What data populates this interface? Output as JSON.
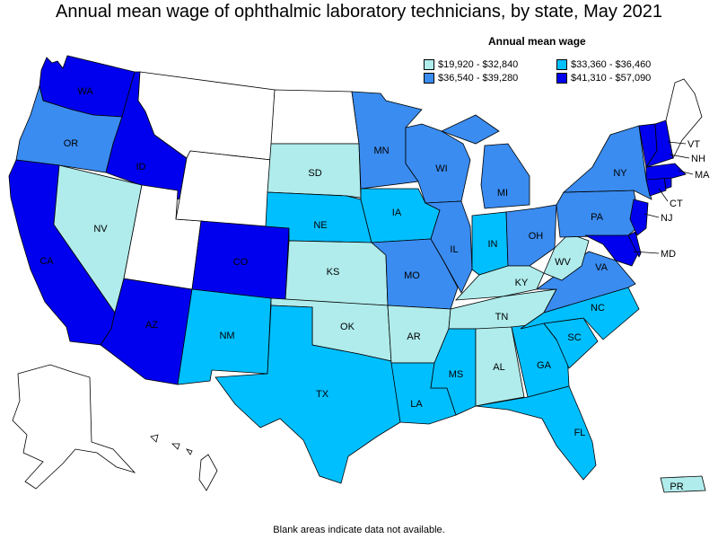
{
  "title": "Annual mean wage of ophthalmic laboratory technicians, by state, May 2021",
  "legend": {
    "title": "Annual mean wage",
    "items": [
      {
        "label": "$19,920 - $32,840",
        "color": "#b0ecec"
      },
      {
        "label": "$33,360 - $36,460",
        "color": "#00bfff"
      },
      {
        "label": "$36,540 - $39,280",
        "color": "#3a8cf0"
      },
      {
        "label": "$41,310 - $57,090",
        "color": "#0000ee"
      }
    ]
  },
  "note": "Blank areas indicate data not available.",
  "no_data_color": "#ffffff",
  "states": {
    "WA": {
      "label": "WA",
      "tier": 3
    },
    "OR": {
      "label": "OR",
      "tier": 2
    },
    "CA": {
      "label": "CA",
      "tier": 3
    },
    "ID": {
      "label": "ID",
      "tier": 3
    },
    "NV": {
      "label": "NV",
      "tier": 0
    },
    "AZ": {
      "label": "AZ",
      "tier": 3
    },
    "MT": {
      "label": "",
      "tier": -1
    },
    "WY": {
      "label": "",
      "tier": -1
    },
    "UT": {
      "label": "",
      "tier": -1
    },
    "CO": {
      "label": "CO",
      "tier": 3
    },
    "NM": {
      "label": "NM",
      "tier": 1
    },
    "ND": {
      "label": "",
      "tier": -1
    },
    "SD": {
      "label": "SD",
      "tier": 0
    },
    "NE": {
      "label": "NE",
      "tier": 1
    },
    "KS": {
      "label": "KS",
      "tier": 0
    },
    "OK": {
      "label": "OK",
      "tier": 0
    },
    "TX": {
      "label": "TX",
      "tier": 1
    },
    "MN": {
      "label": "MN",
      "tier": 2
    },
    "IA": {
      "label": "IA",
      "tier": 1
    },
    "MO": {
      "label": "MO",
      "tier": 2
    },
    "AR": {
      "label": "AR",
      "tier": 0
    },
    "LA": {
      "label": "LA",
      "tier": 1
    },
    "WI": {
      "label": "WI",
      "tier": 2
    },
    "IL": {
      "label": "IL",
      "tier": 2
    },
    "MS": {
      "label": "MS",
      "tier": 1
    },
    "MI": {
      "label": "MI",
      "tier": 2
    },
    "IN": {
      "label": "IN",
      "tier": 1
    },
    "OH": {
      "label": "OH",
      "tier": 2
    },
    "KY": {
      "label": "KY",
      "tier": 0
    },
    "TN": {
      "label": "TN",
      "tier": 0
    },
    "AL": {
      "label": "AL",
      "tier": 0
    },
    "GA": {
      "label": "GA",
      "tier": 1
    },
    "FL": {
      "label": "FL",
      "tier": 1
    },
    "SC": {
      "label": "SC",
      "tier": 1
    },
    "NC": {
      "label": "NC",
      "tier": 1
    },
    "VA": {
      "label": "VA",
      "tier": 2
    },
    "WV": {
      "label": "WV",
      "tier": 0
    },
    "PA": {
      "label": "PA",
      "tier": 2
    },
    "NY": {
      "label": "NY",
      "tier": 2
    },
    "ME": {
      "label": "",
      "tier": -1
    },
    "VT": {
      "label": "VT",
      "tier": 3
    },
    "NH": {
      "label": "NH",
      "tier": 3
    },
    "MA": {
      "label": "MA",
      "tier": 3
    },
    "CT": {
      "label": "CT",
      "tier": 3
    },
    "RI": {
      "label": "",
      "tier": 3
    },
    "NJ": {
      "label": "NJ",
      "tier": 3
    },
    "DE": {
      "label": "",
      "tier": 3
    },
    "MD": {
      "label": "MD",
      "tier": 3
    },
    "AK": {
      "label": "",
      "tier": -1
    },
    "HI": {
      "label": "",
      "tier": -1
    },
    "PR": {
      "label": "PR",
      "tier": 0
    }
  }
}
